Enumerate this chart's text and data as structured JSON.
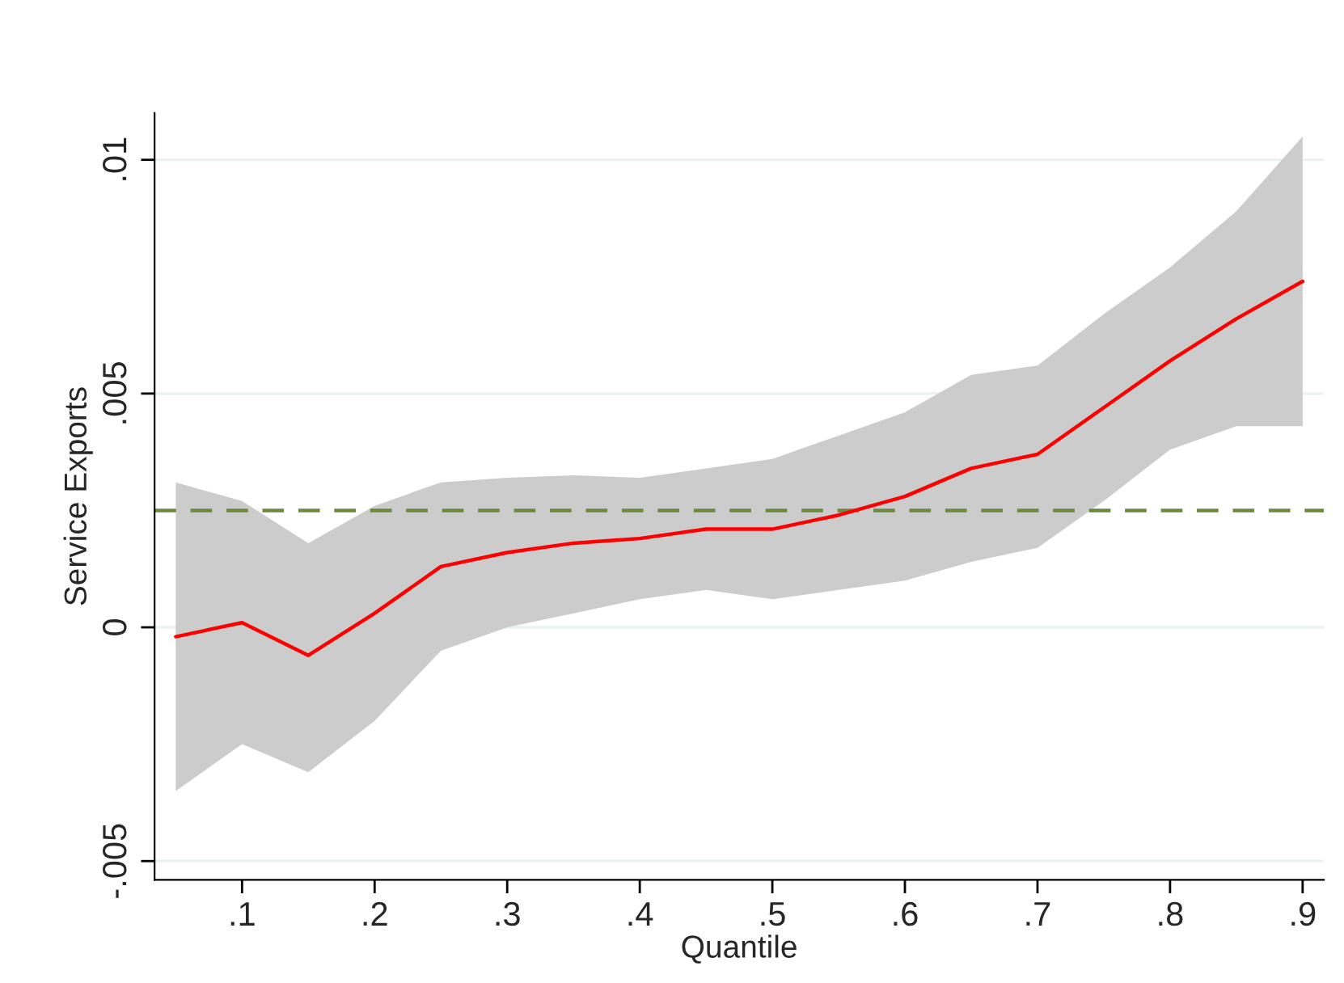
{
  "chart_data": {
    "type": "line",
    "xlabel": "Quantile",
    "ylabel": "Service Exports",
    "x": [
      0.05,
      0.1,
      0.15,
      0.2,
      0.25,
      0.3,
      0.35,
      0.4,
      0.45,
      0.5,
      0.55,
      0.6,
      0.65,
      0.7,
      0.75,
      0.8,
      0.85,
      0.9
    ],
    "series": [
      {
        "color": "#ff0000",
        "values": [
          -0.0002,
          0.0001,
          -0.0006,
          0.0003,
          0.0013,
          0.0016,
          0.0018,
          0.0019,
          0.0021,
          0.0021,
          0.0024,
          0.0028,
          0.0034,
          0.0037,
          0.0047,
          0.0057,
          0.0066,
          0.0074
        ],
        "lower": [
          -0.0035,
          -0.0025,
          -0.0031,
          -0.002,
          -0.0005,
          0.0,
          0.0003,
          0.0006,
          0.0008,
          0.0006,
          0.0008,
          0.001,
          0.0014,
          0.0017,
          0.0027,
          0.0038,
          0.0043,
          0.0043
        ],
        "upper": [
          0.0031,
          0.0027,
          0.0018,
          0.0026,
          0.0031,
          0.0032,
          0.00325,
          0.0032,
          0.0034,
          0.0036,
          0.0041,
          0.0046,
          0.0054,
          0.0056,
          0.0067,
          0.0077,
          0.0089,
          0.0105
        ]
      }
    ],
    "ref_lines": [
      {
        "axis": "y",
        "value": 0.0025,
        "color": "#6b8a3e",
        "line_style": "dashed"
      }
    ],
    "xlim": [
      0.034,
      0.916
    ],
    "xticks": [
      {
        "value": 0.1,
        "label": ".1"
      },
      {
        "value": 0.2,
        "label": ".2"
      },
      {
        "value": 0.3,
        "label": ".3"
      },
      {
        "value": 0.4,
        "label": ".4"
      },
      {
        "value": 0.5,
        "label": ".5"
      },
      {
        "value": 0.6,
        "label": ".6"
      },
      {
        "value": 0.7,
        "label": ".7"
      },
      {
        "value": 0.8,
        "label": ".8"
      },
      {
        "value": 0.9,
        "label": ".9"
      }
    ],
    "ylim": [
      -0.0054,
      0.011
    ],
    "yticks": [
      {
        "value": -0.005,
        "label": "-.005"
      },
      {
        "value": 0,
        "label": "0"
      },
      {
        "value": 0.005,
        "label": ".005"
      },
      {
        "value": 0.01,
        "label": ".01"
      }
    ],
    "grid": "y",
    "legend": false,
    "line_style": "solid",
    "marker": "none"
  }
}
